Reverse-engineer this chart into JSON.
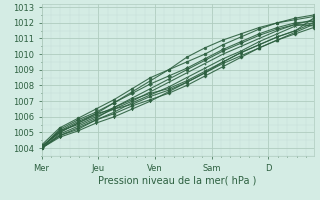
{
  "xlabel": "Pression niveau de la mer( hPa )",
  "bg_color": "#d4ece4",
  "grid_major_color": "#b0ccbf",
  "grid_minor_color": "#c4ddd6",
  "line_color": "#2d6040",
  "xmin": 0,
  "xmax": 4.8,
  "ymin": 1003.5,
  "ymax": 1013.2,
  "xtick_labels": [
    "Mer",
    "Jeu",
    "Ven",
    "Sam",
    "D"
  ],
  "xtick_positions": [
    0,
    1,
    2,
    3,
    4
  ],
  "ytick_positions": [
    1004,
    1005,
    1006,
    1007,
    1008,
    1009,
    1010,
    1011,
    1012,
    1013
  ],
  "series": [
    [
      1004.05,
      1005.1,
      1005.5,
      1006.0,
      1006.5,
      1007.0,
      1007.6,
      1008.2,
      1008.8,
      1009.4,
      1010.0,
      1010.5,
      1011.0,
      1011.5,
      1011.9,
      1012.2
    ],
    [
      1004.0,
      1004.8,
      1005.2,
      1005.8,
      1006.3,
      1006.9,
      1007.4,
      1007.9,
      1008.5,
      1009.1,
      1009.7,
      1010.2,
      1010.8,
      1011.3,
      1011.8,
      1012.0
    ],
    [
      1004.1,
      1005.0,
      1005.6,
      1006.1,
      1006.6,
      1007.2,
      1007.8,
      1008.4,
      1009.0,
      1009.6,
      1010.2,
      1010.7,
      1011.2,
      1011.6,
      1011.9,
      1011.8
    ],
    [
      1004.05,
      1005.2,
      1005.8,
      1006.3,
      1006.9,
      1007.5,
      1008.1,
      1008.6,
      1009.1,
      1009.7,
      1010.3,
      1010.8,
      1011.3,
      1011.7,
      1012.0,
      1012.1
    ],
    [
      1004.0,
      1004.9,
      1005.4,
      1005.9,
      1006.6,
      1007.1,
      1007.5,
      1007.8,
      1008.3,
      1008.9,
      1009.5,
      1010.1,
      1010.6,
      1011.1,
      1011.5,
      1012.3
    ],
    [
      1004.1,
      1005.1,
      1005.7,
      1006.2,
      1006.5,
      1006.8,
      1007.3,
      1007.7,
      1008.2,
      1008.8,
      1009.4,
      1009.9,
      1010.4,
      1010.9,
      1011.4,
      1011.9
    ],
    [
      1004.0,
      1004.7,
      1005.1,
      1005.6,
      1006.0,
      1006.5,
      1007.0,
      1007.6,
      1008.2,
      1008.8,
      1009.5,
      1010.1,
      1010.6,
      1011.1,
      1011.5,
      1012.0
    ],
    [
      1004.2,
      1005.3,
      1005.9,
      1006.5,
      1007.1,
      1007.8,
      1008.5,
      1009.0,
      1009.5,
      1010.0,
      1010.6,
      1011.1,
      1011.6,
      1012.0,
      1012.3,
      1012.5
    ],
    [
      1004.0,
      1004.8,
      1005.3,
      1005.8,
      1006.2,
      1006.7,
      1007.1,
      1007.5,
      1008.0,
      1008.6,
      1009.2,
      1009.8,
      1010.4,
      1010.9,
      1011.3,
      1011.7
    ],
    [
      1004.1,
      1005.0,
      1005.6,
      1006.2,
      1006.9,
      1007.6,
      1008.3,
      1009.0,
      1009.8,
      1010.4,
      1010.9,
      1011.3,
      1011.7,
      1012.0,
      1012.2,
      1012.4
    ]
  ]
}
